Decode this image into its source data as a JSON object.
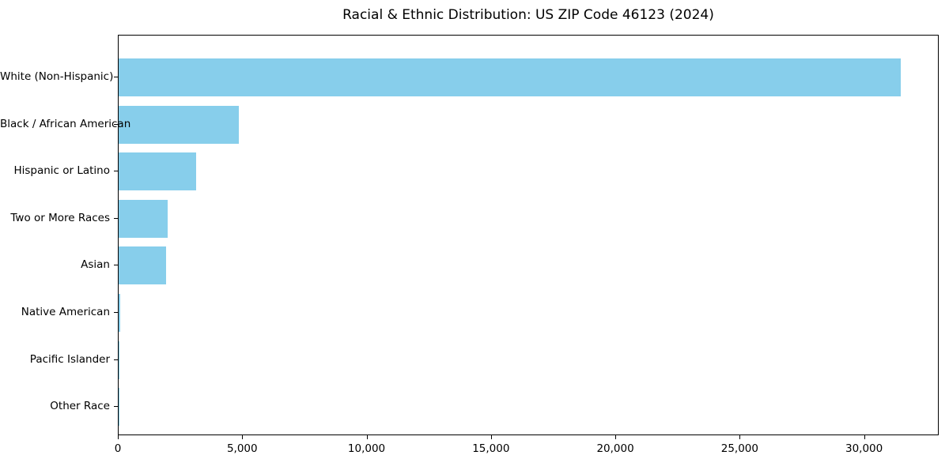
{
  "figure": {
    "background": "#ffffff",
    "text_color": "#000000"
  },
  "chart_data": {
    "type": "bar",
    "orientation": "horizontal",
    "title": "Racial & Ethnic Distribution: US ZIP Code 46123 (2024)",
    "categories": [
      "White (Non-Hispanic)",
      "Black / African American",
      "Hispanic or Latino",
      "Two or More Races",
      "Asian",
      "Native American",
      "Pacific Islander",
      "Other Race"
    ],
    "values": [
      31430,
      4830,
      3120,
      1960,
      1900,
      50,
      10,
      10
    ],
    "xlabel": "",
    "ylabel": "",
    "xlim": [
      0,
      33000
    ],
    "x_ticks": [
      0,
      5000,
      10000,
      15000,
      20000,
      25000,
      30000
    ],
    "x_tick_labels": [
      "0",
      "5,000",
      "10,000",
      "15,000",
      "20,000",
      "25,000",
      "30,000"
    ],
    "bar_color": "#87CEEB",
    "grid": false,
    "legend_position": "none"
  }
}
